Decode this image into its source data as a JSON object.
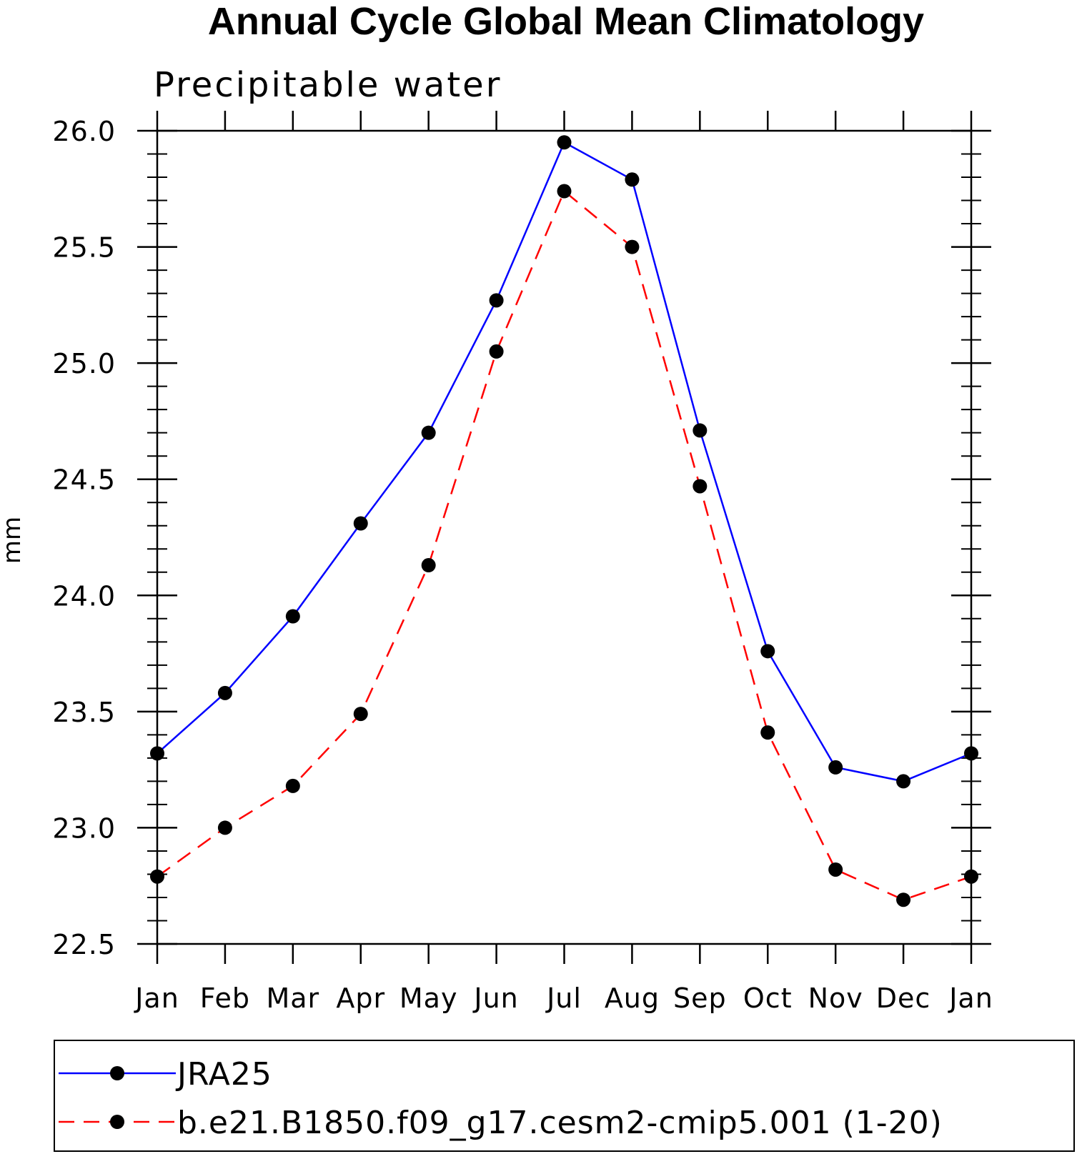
{
  "chart_data": {
    "type": "line",
    "title": "Annual Cycle Global Mean Climatology",
    "subtitle": "Precipitable water",
    "xlabel": "",
    "ylabel": "mm",
    "categories": [
      "Jan",
      "Feb",
      "Mar",
      "Apr",
      "May",
      "Jun",
      "Jul",
      "Aug",
      "Sep",
      "Oct",
      "Nov",
      "Dec",
      "Jan"
    ],
    "ylim": [
      22.5,
      26.0
    ],
    "yticks": [
      "22.5",
      "23.0",
      "23.5",
      "24.0",
      "24.5",
      "25.0",
      "25.5",
      "26.0"
    ],
    "grid": false,
    "legend_position": "bottom",
    "series": [
      {
        "name": "JRA25",
        "color": "#0000ff",
        "dash": "solid",
        "marker": "filled-circle",
        "values": [
          23.32,
          23.58,
          23.91,
          24.31,
          24.7,
          25.27,
          25.95,
          25.79,
          24.71,
          23.76,
          23.26,
          23.2,
          23.32
        ]
      },
      {
        "name": "b.e21.B1850.f09_g17.cesm2-cmip5.001 (1-20)",
        "color": "#ff0000",
        "dash": "dashed",
        "marker": "filled-circle",
        "values": [
          22.79,
          23.0,
          23.18,
          23.49,
          24.13,
          25.05,
          25.74,
          25.5,
          24.47,
          23.41,
          22.82,
          22.69,
          22.79
        ]
      }
    ]
  }
}
